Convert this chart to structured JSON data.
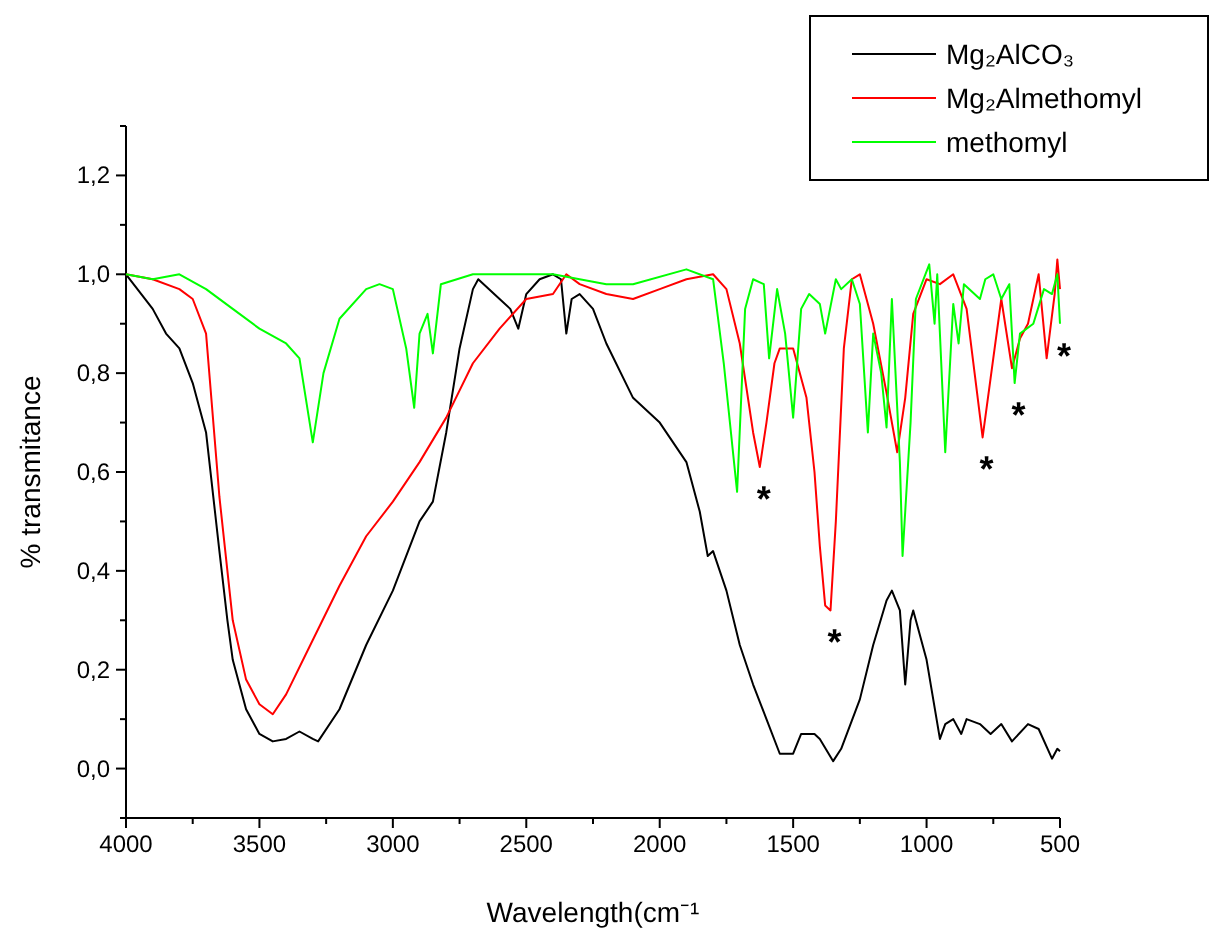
{
  "chart_data": {
    "type": "line",
    "xlabel": "Wavelength(cm⁻¹",
    "ylabel": "% transmitance",
    "xlim": [
      4000,
      500
    ],
    "ylim": [
      -0.1,
      1.3
    ],
    "xticks": [
      4000,
      {
        "value": 3750,
        "label": null
      },
      3500,
      {
        "value": 3250,
        "label": null
      },
      3000,
      {
        "value": 2750,
        "label": null
      },
      2500,
      {
        "value": 2250,
        "label": null
      },
      2000,
      {
        "value": 1750,
        "label": null
      },
      1500,
      {
        "value": 1250,
        "label": null
      },
      1000,
      {
        "value": 750,
        "label": null
      },
      500
    ],
    "yticks": [
      {
        "value": -0.1,
        "label": null
      },
      {
        "value": 0,
        "label": "0,0"
      },
      {
        "value": 0.1,
        "label": null
      },
      {
        "value": 0.2,
        "label": "0,2"
      },
      {
        "value": 0.3,
        "label": null
      },
      {
        "value": 0.4,
        "label": "0,4"
      },
      {
        "value": 0.5,
        "label": null
      },
      {
        "value": 0.6,
        "label": "0,6"
      },
      {
        "value": 0.7,
        "label": null
      },
      {
        "value": 0.8,
        "label": "0,8"
      },
      {
        "value": 0.9,
        "label": null
      },
      {
        "value": 1.0,
        "label": "1,0"
      },
      {
        "value": 1.1,
        "label": null
      },
      {
        "value": 1.2,
        "label": "1,2"
      },
      {
        "value": 1.3,
        "label": null
      }
    ],
    "legend": "top right",
    "grid": false,
    "marker": "none",
    "line_style": "solid",
    "series": [
      {
        "name": "Mg₂AlCO₃",
        "color": "#000000",
        "x": [
          4000,
          3900,
          3850,
          3800,
          3750,
          3700,
          3650,
          3620,
          3600,
          3550,
          3500,
          3450,
          3400,
          3350,
          3300,
          3280,
          3200,
          3100,
          3000,
          2900,
          2850,
          2800,
          2750,
          2700,
          2680,
          2600,
          2560,
          2530,
          2500,
          2450,
          2400,
          2370,
          2350,
          2330,
          2300,
          2250,
          2200,
          2100,
          2000,
          1950,
          1900,
          1850,
          1820,
          1800,
          1750,
          1700,
          1650,
          1600,
          1550,
          1500,
          1470,
          1420,
          1400,
          1350,
          1320,
          1250,
          1200,
          1150,
          1130,
          1100,
          1080,
          1060,
          1050,
          1000,
          950,
          930,
          900,
          870,
          850,
          800,
          760,
          720,
          680,
          620,
          580,
          530,
          510,
          500
        ],
        "values": [
          1.0,
          0.93,
          0.88,
          0.85,
          0.78,
          0.68,
          0.44,
          0.3,
          0.22,
          0.12,
          0.07,
          0.055,
          0.06,
          0.075,
          0.06,
          0.055,
          0.12,
          0.25,
          0.36,
          0.5,
          0.54,
          0.68,
          0.85,
          0.97,
          0.99,
          0.95,
          0.93,
          0.89,
          0.96,
          0.99,
          1.0,
          0.99,
          0.88,
          0.95,
          0.96,
          0.93,
          0.86,
          0.75,
          0.7,
          0.66,
          0.62,
          0.52,
          0.43,
          0.44,
          0.36,
          0.25,
          0.17,
          0.1,
          0.03,
          0.03,
          0.07,
          0.07,
          0.06,
          0.015,
          0.04,
          0.14,
          0.25,
          0.34,
          0.36,
          0.32,
          0.17,
          0.3,
          0.32,
          0.22,
          0.06,
          0.09,
          0.1,
          0.07,
          0.1,
          0.09,
          0.07,
          0.09,
          0.055,
          0.09,
          0.08,
          0.02,
          0.04,
          0.035
        ]
      },
      {
        "name": "Mg₂Almethomyl",
        "color": "#ff0000",
        "x": [
          4000,
          3900,
          3800,
          3750,
          3700,
          3650,
          3600,
          3550,
          3500,
          3450,
          3400,
          3300,
          3200,
          3100,
          3000,
          2900,
          2800,
          2700,
          2600,
          2500,
          2400,
          2350,
          2300,
          2200,
          2100,
          2000,
          1900,
          1800,
          1750,
          1700,
          1650,
          1625,
          1600,
          1570,
          1550,
          1500,
          1450,
          1420,
          1400,
          1380,
          1360,
          1340,
          1310,
          1280,
          1250,
          1200,
          1150,
          1110,
          1080,
          1050,
          1000,
          950,
          900,
          850,
          820,
          790,
          760,
          720,
          680,
          650,
          620,
          580,
          550,
          520,
          510,
          500
        ],
        "values": [
          1.0,
          0.99,
          0.97,
          0.95,
          0.88,
          0.55,
          0.3,
          0.18,
          0.13,
          0.11,
          0.15,
          0.26,
          0.37,
          0.47,
          0.54,
          0.62,
          0.71,
          0.82,
          0.89,
          0.95,
          0.96,
          1.0,
          0.98,
          0.96,
          0.95,
          0.97,
          0.99,
          1.0,
          0.97,
          0.86,
          0.68,
          0.61,
          0.7,
          0.82,
          0.85,
          0.85,
          0.75,
          0.6,
          0.45,
          0.33,
          0.32,
          0.5,
          0.85,
          0.99,
          1.0,
          0.9,
          0.76,
          0.64,
          0.75,
          0.92,
          0.99,
          0.98,
          1.0,
          0.93,
          0.8,
          0.67,
          0.79,
          0.95,
          0.81,
          0.87,
          0.9,
          1.0,
          0.83,
          0.96,
          1.03,
          0.97
        ]
      },
      {
        "name": "methomyl",
        "color": "#00ff00",
        "x": [
          4000,
          3900,
          3800,
          3700,
          3600,
          3500,
          3400,
          3350,
          3300,
          3260,
          3200,
          3100,
          3050,
          3000,
          2950,
          2920,
          2900,
          2870,
          2850,
          2820,
          2700,
          2400,
          2200,
          2100,
          1900,
          1800,
          1760,
          1710,
          1680,
          1650,
          1610,
          1590,
          1560,
          1530,
          1500,
          1470,
          1440,
          1400,
          1380,
          1340,
          1320,
          1280,
          1250,
          1220,
          1200,
          1170,
          1150,
          1130,
          1100,
          1090,
          1060,
          1040,
          990,
          970,
          960,
          930,
          900,
          880,
          860,
          800,
          780,
          750,
          720,
          690,
          670,
          650,
          600,
          560,
          530,
          510,
          500
        ],
        "values": [
          1.0,
          0.99,
          1.0,
          0.97,
          0.93,
          0.89,
          0.86,
          0.83,
          0.66,
          0.8,
          0.91,
          0.97,
          0.98,
          0.97,
          0.85,
          0.73,
          0.88,
          0.92,
          0.84,
          0.98,
          1.0,
          1.0,
          0.98,
          0.98,
          1.01,
          0.99,
          0.82,
          0.56,
          0.93,
          0.99,
          0.98,
          0.83,
          0.97,
          0.88,
          0.71,
          0.93,
          0.96,
          0.94,
          0.88,
          0.99,
          0.97,
          0.99,
          0.94,
          0.68,
          0.88,
          0.8,
          0.69,
          0.95,
          0.62,
          0.43,
          0.7,
          0.95,
          1.02,
          0.9,
          1.0,
          0.64,
          0.94,
          0.86,
          0.98,
          0.95,
          0.99,
          1.0,
          0.95,
          0.98,
          0.78,
          0.88,
          0.9,
          0.97,
          0.96,
          1.0,
          0.9
        ]
      }
    ],
    "annotations": [
      {
        "text": "*",
        "x": 1625,
        "y": 0.61
      },
      {
        "text": "*",
        "x": 1360,
        "y": 0.32
      },
      {
        "text": "*",
        "x": 790,
        "y": 0.67
      },
      {
        "text": "*",
        "x": 670,
        "y": 0.78
      },
      {
        "text": "*",
        "x": 500,
        "y": 0.9
      }
    ]
  }
}
